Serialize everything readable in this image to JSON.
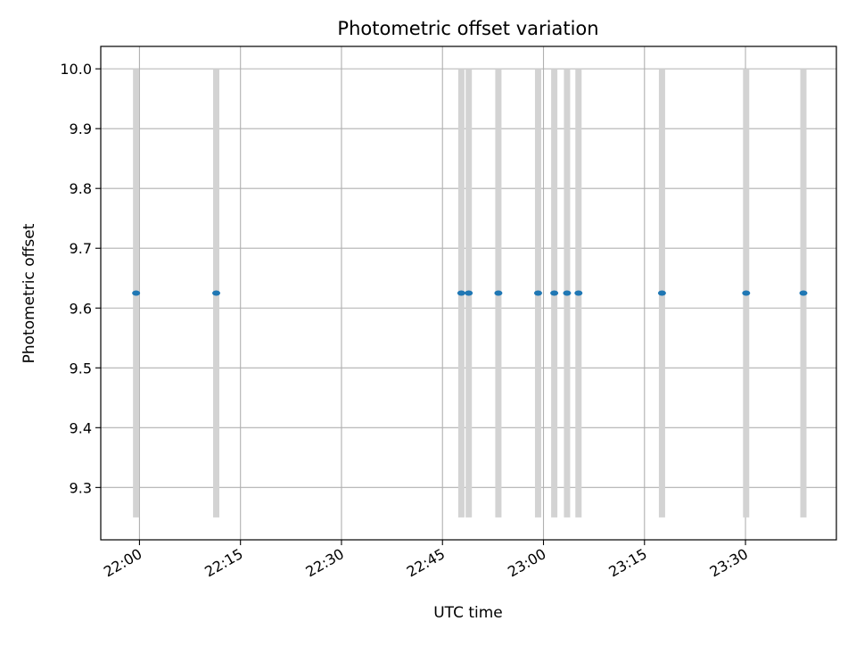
{
  "chart_data": {
    "type": "scatter",
    "title": "Photometric offset variation",
    "xlabel": "UTC time",
    "ylabel": "Photometric offset",
    "x_tick_labels": [
      "22:00",
      "22:15",
      "22:30",
      "22:45",
      "23:00",
      "23:15",
      "23:30"
    ],
    "x_tick_minutes": [
      0,
      15,
      30,
      45,
      60,
      75,
      90
    ],
    "xlim_minutes_after_22_00": [
      -5.75,
      103.5
    ],
    "y_tick_labels": [
      "9.3",
      "9.4",
      "9.5",
      "9.6",
      "9.7",
      "9.8",
      "9.9",
      "10.0"
    ],
    "y_ticks": [
      9.3,
      9.4,
      9.5,
      9.6,
      9.7,
      9.8,
      9.9,
      10.0
    ],
    "ylim": [
      9.2125,
      10.0375
    ],
    "grid": true,
    "band_range": [
      9.25,
      10.0
    ],
    "points": [
      {
        "t_min": -0.5,
        "y": 9.625
      },
      {
        "t_min": 11.4,
        "y": 9.625
      },
      {
        "t_min": 47.8,
        "y": 9.625
      },
      {
        "t_min": 48.9,
        "y": 9.625
      },
      {
        "t_min": 53.3,
        "y": 9.625
      },
      {
        "t_min": 59.2,
        "y": 9.625
      },
      {
        "t_min": 61.6,
        "y": 9.625
      },
      {
        "t_min": 63.5,
        "y": 9.625
      },
      {
        "t_min": 65.2,
        "y": 9.625
      },
      {
        "t_min": 77.6,
        "y": 9.625
      },
      {
        "t_min": 90.1,
        "y": 9.625
      },
      {
        "t_min": 98.6,
        "y": 9.625
      }
    ],
    "colors": {
      "points": "#1f77b4",
      "bands": "#d3d3d3",
      "grid": "#b0b0b0",
      "axes": "#000000"
    }
  }
}
